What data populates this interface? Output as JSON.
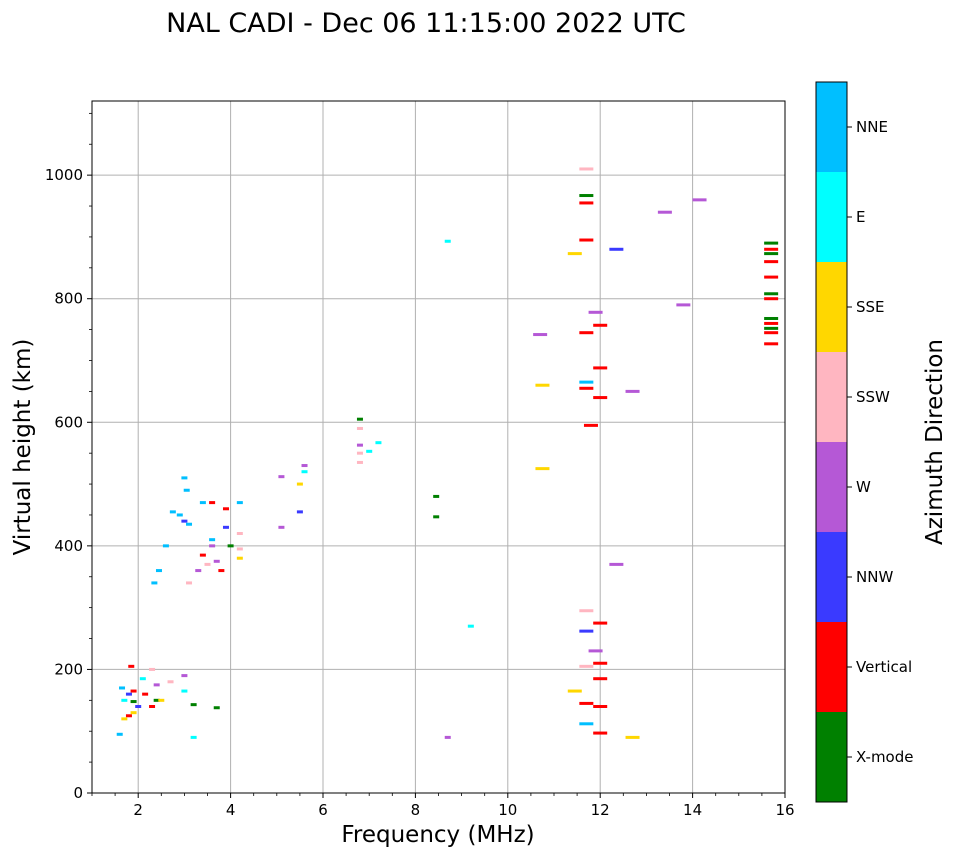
{
  "chart_data": {
    "type": "scatter",
    "title": "NAL CADI - Dec 06 11:15:00 2022 UTC",
    "xlabel": "Frequency (MHz)",
    "ylabel": "Virtual height (km)",
    "xlim": [
      1,
      16
    ],
    "ylim": [
      0,
      1120
    ],
    "xticks": [
      2,
      4,
      6,
      8,
      10,
      12,
      14,
      16
    ],
    "yticks": [
      0,
      200,
      400,
      600,
      800,
      1000
    ],
    "grid": true,
    "colorbar": {
      "label": "Azimuth Direction",
      "categories": [
        "X-mode",
        "Vertical",
        "NNW",
        "W",
        "SSW",
        "SSE",
        "E",
        "NNE"
      ],
      "colors": [
        "#008000",
        "#ff0000",
        "#3a3aff",
        "#b558d6",
        "#ffb6c1",
        "#ffd700",
        "#00ffff",
        "#00bfff"
      ]
    },
    "series": [
      {
        "name": "X-mode",
        "color": "#008000",
        "points": [
          [
            3.7,
            138
          ],
          [
            3.2,
            143
          ],
          [
            1.9,
            148
          ],
          [
            2.4,
            150
          ],
          [
            4.0,
            400
          ],
          [
            6.8,
            605
          ],
          [
            8.45,
            480
          ],
          [
            8.45,
            447
          ],
          [
            11.7,
            967
          ],
          [
            15.7,
            890
          ],
          [
            15.7,
            873
          ],
          [
            15.7,
            808
          ],
          [
            15.7,
            768
          ],
          [
            15.7,
            752
          ]
        ]
      },
      {
        "name": "Vertical",
        "color": "#ff0000",
        "points": [
          [
            1.8,
            125
          ],
          [
            1.9,
            165
          ],
          [
            1.85,
            205
          ],
          [
            2.15,
            160
          ],
          [
            2.3,
            140
          ],
          [
            3.6,
            470
          ],
          [
            3.9,
            460
          ],
          [
            3.4,
            385
          ],
          [
            3.8,
            360
          ],
          [
            11.7,
            955
          ],
          [
            11.7,
            895
          ],
          [
            12.0,
            757
          ],
          [
            11.7,
            745
          ],
          [
            12.0,
            688
          ],
          [
            11.7,
            655
          ],
          [
            12.0,
            640
          ],
          [
            11.8,
            595
          ],
          [
            12.0,
            275
          ],
          [
            12.0,
            210
          ],
          [
            12.0,
            185
          ],
          [
            11.7,
            145
          ],
          [
            12.0,
            140
          ],
          [
            12.0,
            97
          ],
          [
            15.7,
            880
          ],
          [
            15.7,
            860
          ],
          [
            15.7,
            835
          ],
          [
            15.7,
            800
          ],
          [
            15.7,
            760
          ],
          [
            15.7,
            745
          ],
          [
            15.7,
            727
          ]
        ]
      },
      {
        "name": "NNW",
        "color": "#3a3aff",
        "points": [
          [
            1.8,
            160
          ],
          [
            2.0,
            140
          ],
          [
            3.0,
            440
          ],
          [
            3.9,
            430
          ],
          [
            5.5,
            455
          ],
          [
            12.35,
            880
          ],
          [
            11.7,
            262
          ]
        ]
      },
      {
        "name": "W",
        "color": "#b558d6",
        "points": [
          [
            2.4,
            175
          ],
          [
            3.0,
            190
          ],
          [
            3.6,
            400
          ],
          [
            3.7,
            375
          ],
          [
            3.3,
            360
          ],
          [
            5.1,
            512
          ],
          [
            5.1,
            430
          ],
          [
            5.6,
            530
          ],
          [
            6.8,
            563
          ],
          [
            8.7,
            90
          ],
          [
            10.7,
            742
          ],
          [
            11.9,
            778
          ],
          [
            12.7,
            650
          ],
          [
            12.35,
            370
          ],
          [
            11.9,
            230
          ],
          [
            13.4,
            940
          ],
          [
            14.15,
            960
          ],
          [
            13.8,
            790
          ]
        ]
      },
      {
        "name": "SSW",
        "color": "#ffb6c1",
        "points": [
          [
            2.3,
            200
          ],
          [
            2.7,
            180
          ],
          [
            3.1,
            340
          ],
          [
            3.5,
            370
          ],
          [
            4.2,
            420
          ],
          [
            4.2,
            395
          ],
          [
            6.8,
            590
          ],
          [
            6.8,
            550
          ],
          [
            6.8,
            535
          ],
          [
            11.7,
            1010
          ],
          [
            11.7,
            295
          ],
          [
            11.7,
            205
          ]
        ]
      },
      {
        "name": "SSE",
        "color": "#ffd700",
        "points": [
          [
            1.7,
            120
          ],
          [
            1.9,
            130
          ],
          [
            2.5,
            150
          ],
          [
            4.2,
            380
          ],
          [
            5.5,
            500
          ],
          [
            10.75,
            660
          ],
          [
            10.75,
            525
          ],
          [
            11.45,
            873
          ],
          [
            11.45,
            165
          ],
          [
            12.7,
            90
          ]
        ]
      },
      {
        "name": "E",
        "color": "#00ffff",
        "points": [
          [
            1.7,
            150
          ],
          [
            2.1,
            185
          ],
          [
            3.0,
            165
          ],
          [
            3.2,
            90
          ],
          [
            7.0,
            553
          ],
          [
            7.2,
            567
          ],
          [
            8.7,
            893
          ],
          [
            9.2,
            270
          ],
          [
            5.6,
            520
          ]
        ]
      },
      {
        "name": "NNE",
        "color": "#00bfff",
        "points": [
          [
            1.6,
            95
          ],
          [
            1.65,
            170
          ],
          [
            2.35,
            340
          ],
          [
            2.45,
            360
          ],
          [
            2.6,
            400
          ],
          [
            2.75,
            455
          ],
          [
            2.9,
            450
          ],
          [
            3.0,
            510
          ],
          [
            3.05,
            490
          ],
          [
            3.1,
            435
          ],
          [
            3.4,
            470
          ],
          [
            3.6,
            410
          ],
          [
            4.2,
            470
          ],
          [
            11.7,
            665
          ],
          [
            11.7,
            112
          ]
        ]
      }
    ]
  }
}
